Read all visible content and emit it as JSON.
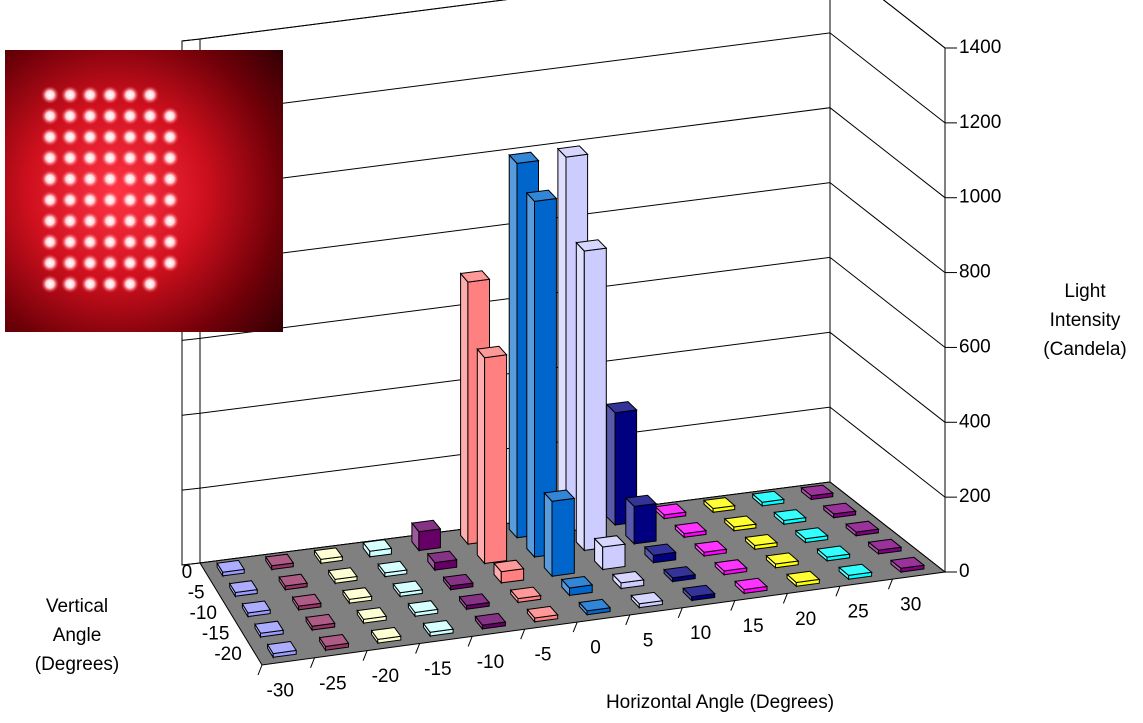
{
  "chart_data": {
    "type": "bar3d",
    "categories": [
      -30,
      -25,
      -20,
      -15,
      -10,
      -5,
      0,
      5,
      10,
      15,
      20,
      25,
      30
    ],
    "rows": [
      0,
      -5,
      -10,
      -15,
      -20
    ],
    "colors": [
      "#9999ff",
      "#993366",
      "#ffffcc",
      "#ccffff",
      "#660066",
      "#ff8080",
      "#0066cc",
      "#ccccff",
      "#000080",
      "#ff00ff",
      "#ffff00",
      "#00ffff",
      "#800080"
    ],
    "values": [
      [
        10,
        10,
        10,
        15,
        50,
        700,
        1000,
        1000,
        300,
        10,
        10,
        10,
        10
      ],
      [
        10,
        10,
        10,
        10,
        20,
        550,
        950,
        800,
        100,
        10,
        10,
        10,
        10
      ],
      [
        10,
        10,
        10,
        10,
        10,
        30,
        200,
        60,
        20,
        10,
        10,
        10,
        10
      ],
      [
        10,
        10,
        10,
        10,
        10,
        10,
        20,
        15,
        10,
        10,
        10,
        10,
        10
      ],
      [
        10,
        10,
        10,
        10,
        10,
        10,
        10,
        10,
        10,
        10,
        10,
        10,
        10
      ]
    ],
    "zlim": [
      0,
      1400
    ],
    "zticks": [
      0,
      200,
      400,
      600,
      800,
      1000,
      1200,
      1400
    ],
    "x_label": "Horizontal Angle (Degrees)",
    "row_label_lines": [
      "Vertical",
      "Angle",
      "(Degrees)"
    ],
    "z_label_lines": [
      "Light",
      "Intensity",
      "(Candela)"
    ],
    "grid": true
  }
}
